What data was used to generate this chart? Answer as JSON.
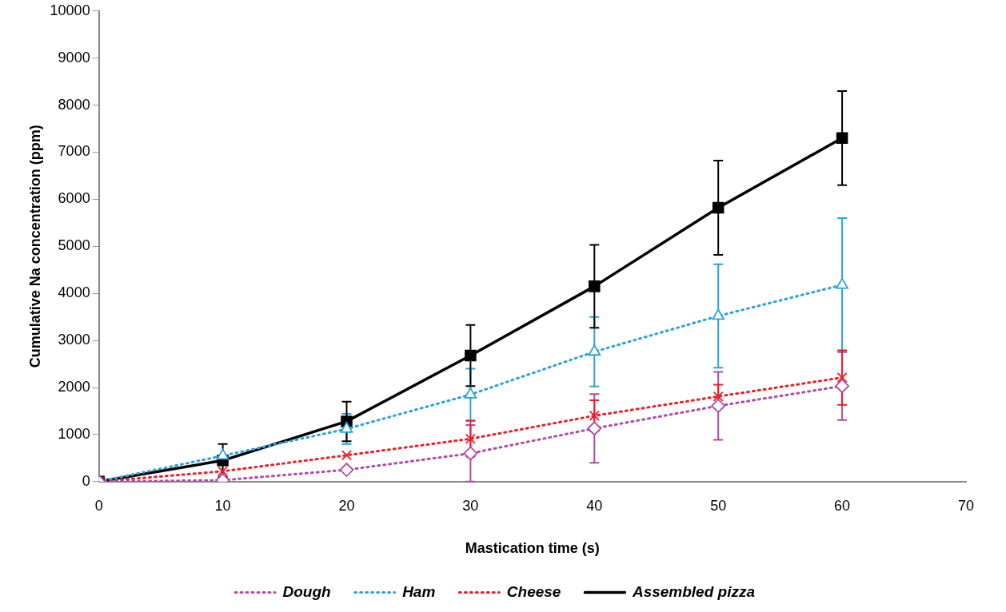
{
  "chart_data": {
    "type": "line",
    "xlabel": "Mastication time (s)",
    "ylabel": "Cumulative Na concentration (ppm)",
    "x": [
      0,
      10,
      20,
      30,
      40,
      50,
      60
    ],
    "xlim": [
      0,
      70
    ],
    "xticks": [
      0,
      10,
      20,
      30,
      40,
      50,
      60,
      70
    ],
    "ylim": [
      0,
      10000
    ],
    "yticks": [
      0,
      1000,
      2000,
      3000,
      4000,
      5000,
      6000,
      7000,
      8000,
      9000,
      10000
    ],
    "grid": false,
    "legend": "bottom",
    "series": [
      {
        "name": "Dough",
        "color": "#b04aa8",
        "marker": "diamond",
        "line_style": "dotted",
        "values": [
          0,
          30,
          250,
          600,
          1130,
          1610,
          2030
        ],
        "errors": [
          null,
          null,
          null,
          600,
          730,
          720,
          720
        ]
      },
      {
        "name": "Ham",
        "color": "#29a3dd",
        "marker": "triangle",
        "line_style": "dotted",
        "values": [
          0,
          550,
          1120,
          1850,
          2760,
          3520,
          4180
        ],
        "errors": [
          null,
          null,
          320,
          550,
          740,
          1100,
          1420
        ]
      },
      {
        "name": "Cheese",
        "color": "#ee1c25",
        "marker": "cross",
        "line_style": "dotted",
        "values": [
          0,
          220,
          560,
          910,
          1400,
          1810,
          2210
        ],
        "errors": [
          null,
          null,
          null,
          380,
          330,
          250,
          580
        ]
      },
      {
        "name": "Assembled pizza",
        "color": "#000000",
        "marker": "square",
        "line_style": "solid",
        "values": [
          0,
          450,
          1280,
          2680,
          4150,
          5820,
          7300
        ],
        "errors": [
          null,
          350,
          420,
          650,
          880,
          1000,
          1000
        ]
      }
    ]
  }
}
